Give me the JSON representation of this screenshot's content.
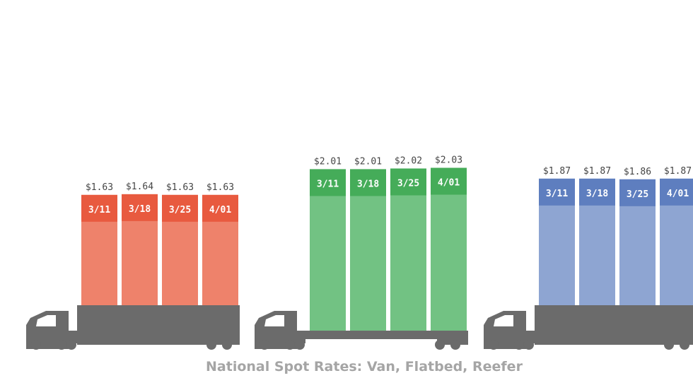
{
  "chart_data": {
    "type": "bar",
    "title": "National Spot Rates: Van, Flatbed, Reefer",
    "value_prefix": "$",
    "groups": [
      {
        "color_top": "#e85a3f",
        "color_body": "#ee826b",
        "categories": [
          "3/11",
          "3/18",
          "3/25",
          "4/01"
        ],
        "values": [
          1.63,
          1.64,
          1.63,
          1.63
        ]
      },
      {
        "color_top": "#45ac59",
        "color_body": "#72c283",
        "categories": [
          "3/11",
          "3/18",
          "3/25",
          "4/01"
        ],
        "values": [
          2.01,
          2.01,
          2.02,
          2.03
        ]
      },
      {
        "color_top": "#5e7ebf",
        "color_body": "#8ea5d2",
        "categories": [
          "3/11",
          "3/18",
          "3/25",
          "4/01"
        ],
        "values": [
          1.87,
          1.87,
          1.86,
          1.87
        ]
      }
    ],
    "truck_color": "#6b6b6b"
  }
}
